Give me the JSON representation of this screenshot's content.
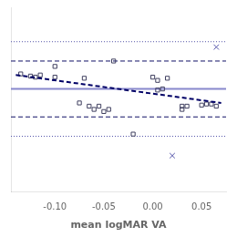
{
  "chart_data": {
    "type": "scatter",
    "xlabel": "mean logMAR VA",
    "xlim": [
      -0.145,
      0.075
    ],
    "ylim": [
      -0.48,
      0.38
    ],
    "xticks": [
      {
        "value": -0.1,
        "label": "-0.10"
      },
      {
        "value": -0.05,
        "label": "-0.05"
      },
      {
        "value": 0.0,
        "label": "0.00"
      },
      {
        "value": 0.05,
        "label": "0.05"
      }
    ],
    "tick_labels": "x",
    "grid": false,
    "series": [
      {
        "type": "hline",
        "color": "#8888cc",
        "line_style": "solid",
        "values": [
          0.0
        ]
      },
      {
        "type": "hline",
        "color": "#111166",
        "line_style": "dashed",
        "values": [
          0.13,
          -0.13
        ]
      },
      {
        "type": "hline",
        "color": "#5555aa",
        "line_style": "dotted",
        "values": [
          0.22,
          -0.22
        ]
      },
      {
        "type": "scatter",
        "marker": "square",
        "color": "#404060",
        "x": [
          -0.135,
          -0.125,
          -0.12,
          -0.115,
          -0.1,
          -0.1,
          -0.075,
          -0.07,
          -0.065,
          -0.06,
          -0.055,
          -0.05,
          -0.045,
          -0.04,
          -0.02,
          0.0,
          0.005,
          0.005,
          0.01,
          0.015,
          0.03,
          0.03,
          0.035,
          0.05,
          0.055,
          0.06,
          0.065
        ],
        "values": [
          0.07,
          0.06,
          0.055,
          0.065,
          0.055,
          0.105,
          -0.065,
          0.05,
          -0.08,
          -0.095,
          -0.08,
          -0.105,
          -0.095,
          0.13,
          -0.21,
          0.055,
          -0.005,
          0.04,
          0.0,
          0.05,
          -0.08,
          -0.095,
          -0.08,
          -0.075,
          -0.07,
          -0.07,
          -0.08
        ]
      },
      {
        "type": "scatter",
        "marker": "x",
        "color": "#5555aa",
        "x": [
          0.065,
          0.02
        ],
        "values": [
          0.195,
          -0.31
        ]
      },
      {
        "type": "line",
        "color": "#000066",
        "line_style": "dashed",
        "x": [
          -0.14,
          0.07
        ],
        "values": [
          0.065,
          -0.065
        ]
      }
    ]
  }
}
